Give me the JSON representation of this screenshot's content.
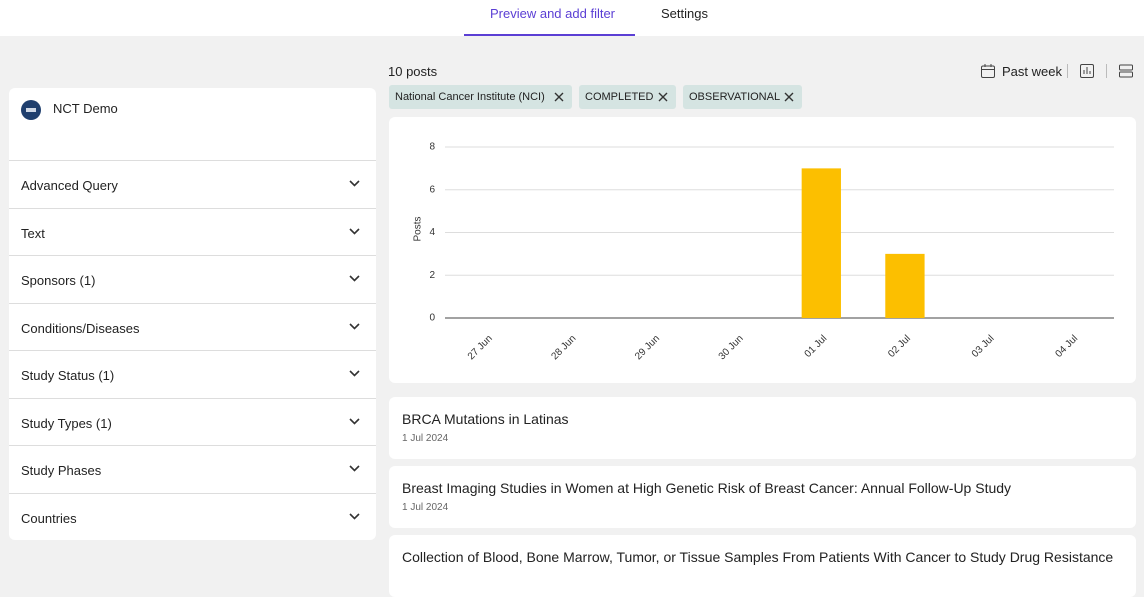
{
  "tabs": [
    "Preview and add filter",
    "Settings"
  ],
  "sidebar": {
    "project": "NCT Demo",
    "filters": [
      "Advanced Query",
      "Text",
      "Sponsors (1)",
      "Conditions/Diseases",
      "Study Status (1)",
      "Study Types (1)",
      "Study Phases",
      "Countries"
    ]
  },
  "toolbar": {
    "count": "10 posts",
    "range": "Past week"
  },
  "chips": [
    "National Cancer Institute (NCI)",
    "COMPLETED",
    "OBSERVATIONAL"
  ],
  "chart_data": {
    "type": "bar",
    "ylabel": "Posts",
    "categories": [
      "27 Jun",
      "28 Jun",
      "29 Jun",
      "30 Jun",
      "01 Jul",
      "02 Jul",
      "03 Jul",
      "04 Jul"
    ],
    "values": [
      0,
      0,
      0,
      0,
      7,
      3,
      0,
      0
    ],
    "color": "#fcbf00",
    "ylim": [
      0,
      8
    ],
    "yticks": [
      0,
      2,
      4,
      6,
      8
    ],
    "grid": true
  },
  "posts": [
    {
      "title": "BRCA Mutations in Latinas",
      "date": "1 Jul 2024"
    },
    {
      "title": "Breast Imaging Studies in Women at High Genetic Risk of Breast Cancer: Annual Follow-Up Study",
      "date": "1 Jul 2024"
    },
    {
      "title": "Collection of Blood, Bone Marrow, Tumor, or Tissue Samples From Patients With Cancer to Study Drug Resistance"
    }
  ]
}
